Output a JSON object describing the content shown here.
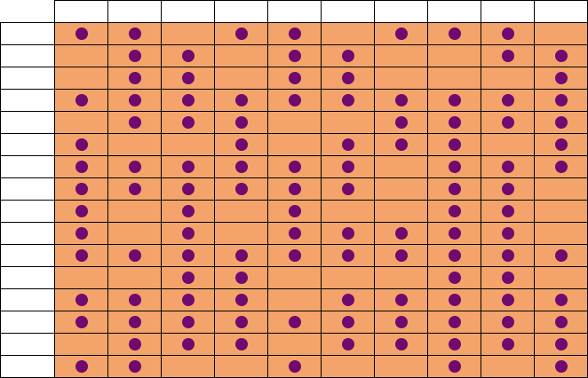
{
  "colors": {
    "cell_fill": "#f4a46a",
    "dot": "#6f0a6e",
    "header_fill": "#ffffff",
    "border": "#000000"
  },
  "columns": 10,
  "rows": 16,
  "matrix": [
    [
      1,
      1,
      0,
      1,
      1,
      0,
      1,
      1,
      1,
      0
    ],
    [
      0,
      1,
      1,
      0,
      1,
      1,
      0,
      0,
      1,
      1
    ],
    [
      0,
      1,
      1,
      0,
      1,
      1,
      0,
      0,
      0,
      1
    ],
    [
      1,
      1,
      1,
      1,
      1,
      1,
      1,
      1,
      1,
      1
    ],
    [
      0,
      1,
      1,
      1,
      0,
      0,
      1,
      1,
      1,
      1
    ],
    [
      1,
      0,
      0,
      1,
      0,
      1,
      1,
      1,
      0,
      1
    ],
    [
      1,
      1,
      1,
      1,
      1,
      1,
      0,
      1,
      1,
      1
    ],
    [
      1,
      1,
      1,
      1,
      1,
      1,
      0,
      1,
      1,
      0
    ],
    [
      1,
      0,
      1,
      0,
      1,
      0,
      0,
      1,
      1,
      0
    ],
    [
      1,
      0,
      1,
      0,
      1,
      1,
      1,
      1,
      1,
      0
    ],
    [
      1,
      1,
      1,
      1,
      1,
      1,
      1,
      1,
      1,
      1
    ],
    [
      0,
      0,
      1,
      1,
      0,
      0,
      0,
      1,
      1,
      0
    ],
    [
      1,
      1,
      1,
      1,
      0,
      1,
      1,
      1,
      1,
      1
    ],
    [
      1,
      1,
      1,
      1,
      1,
      1,
      1,
      1,
      1,
      1
    ],
    [
      0,
      1,
      1,
      1,
      0,
      1,
      1,
      1,
      1,
      1
    ],
    [
      1,
      1,
      0,
      0,
      1,
      0,
      0,
      1,
      0,
      1
    ]
  ]
}
